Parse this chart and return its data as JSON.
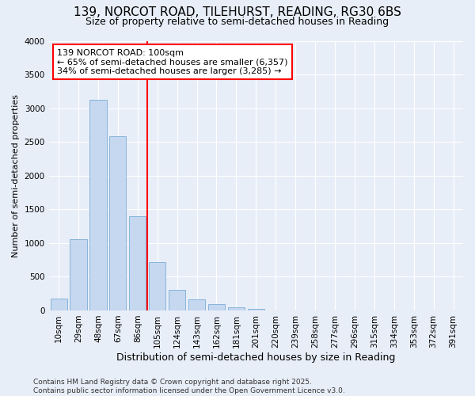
{
  "title1": "139, NORCOT ROAD, TILEHURST, READING, RG30 6BS",
  "title2": "Size of property relative to semi-detached houses in Reading",
  "xlabel": "Distribution of semi-detached houses by size in Reading",
  "ylabel": "Number of semi-detached properties",
  "categories": [
    "10sqm",
    "29sqm",
    "48sqm",
    "67sqm",
    "86sqm",
    "105sqm",
    "124sqm",
    "143sqm",
    "162sqm",
    "181sqm",
    "201sqm",
    "220sqm",
    "239sqm",
    "258sqm",
    "277sqm",
    "296sqm",
    "315sqm",
    "334sqm",
    "353sqm",
    "372sqm",
    "391sqm"
  ],
  "values": [
    175,
    1060,
    3130,
    2590,
    1400,
    720,
    300,
    160,
    90,
    45,
    20,
    5,
    0,
    0,
    0,
    0,
    0,
    0,
    0,
    0,
    0
  ],
  "bar_color": "#c5d8f0",
  "bar_edge_color": "#7aadd4",
  "highlight_line_color": "red",
  "annotation_title": "139 NORCOT ROAD: 100sqm",
  "annotation_line1": "← 65% of semi-detached houses are smaller (6,357)",
  "annotation_line2": "34% of semi-detached houses are larger (3,285) →",
  "ylim": [
    0,
    4000
  ],
  "yticks": [
    0,
    500,
    1000,
    1500,
    2000,
    2500,
    3000,
    3500,
    4000
  ],
  "bg_color": "#e8eef8",
  "plot_bg_color": "#e8eef8",
  "footer1": "Contains HM Land Registry data © Crown copyright and database right 2025.",
  "footer2": "Contains public sector information licensed under the Open Government Licence v3.0.",
  "title1_fontsize": 11,
  "title2_fontsize": 9,
  "xlabel_fontsize": 9,
  "ylabel_fontsize": 8,
  "tick_fontsize": 7.5,
  "footer_fontsize": 6.5,
  "annotation_fontsize": 8
}
